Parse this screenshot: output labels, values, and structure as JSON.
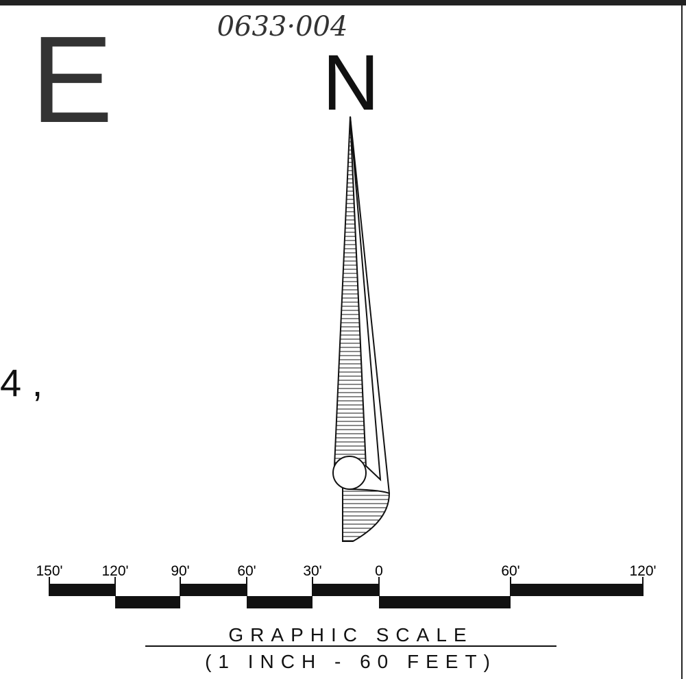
{
  "sheet": {
    "letter": "E",
    "handwritten_number": "0633·004",
    "north_label": "N",
    "left_fragment": "4 ,"
  },
  "graphic_scale": {
    "labels": [
      "150'",
      "120'",
      "90'",
      "60'",
      "30'",
      "0",
      "60'",
      "120'"
    ],
    "title": "GRAPHIC SCALE",
    "subtitle": "(1 INCH - 60 FEET)"
  }
}
